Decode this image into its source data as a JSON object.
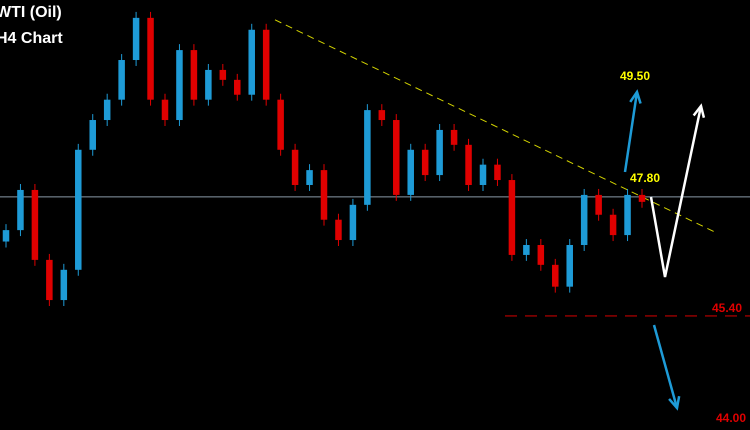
{
  "header": {
    "title_line1": "WTI (Oil)",
    "title_line2": "H4 Chart"
  },
  "chart_data": {
    "type": "candlestick",
    "ylim": [
      43.1,
      51.77
    ],
    "grid": false,
    "colors": {
      "up": "#1e9bd7",
      "down": "#e00000",
      "background": "#000000",
      "trendline": "#d4d400",
      "level_line": "#8a9aa8",
      "support": "#c00000",
      "arrow_blue": "#1e9bd7",
      "arrow_white": "#ffffff"
    },
    "candles": [
      [
        46.9,
        47.25,
        46.78,
        47.13
      ],
      [
        47.13,
        48.06,
        47.01,
        47.94
      ],
      [
        47.94,
        48.06,
        46.41,
        46.53
      ],
      [
        46.53,
        46.65,
        45.6,
        45.72
      ],
      [
        45.72,
        46.45,
        45.6,
        46.33
      ],
      [
        46.33,
        48.87,
        46.21,
        48.75
      ],
      [
        48.75,
        49.47,
        48.63,
        49.35
      ],
      [
        49.35,
        49.88,
        49.23,
        49.76
      ],
      [
        49.76,
        50.68,
        49.64,
        50.56
      ],
      [
        50.56,
        51.53,
        50.44,
        51.41
      ],
      [
        51.41,
        51.53,
        49.64,
        49.76
      ],
      [
        49.76,
        49.88,
        49.23,
        49.35
      ],
      [
        49.35,
        50.88,
        49.23,
        50.76
      ],
      [
        50.76,
        50.88,
        49.64,
        49.76
      ],
      [
        49.76,
        50.48,
        49.64,
        50.36
      ],
      [
        50.36,
        50.48,
        50.04,
        50.16
      ],
      [
        50.16,
        50.28,
        49.74,
        49.86
      ],
      [
        49.86,
        51.29,
        49.74,
        51.17
      ],
      [
        51.17,
        51.29,
        49.64,
        49.76
      ],
      [
        49.76,
        49.88,
        48.63,
        48.75
      ],
      [
        48.75,
        48.87,
        47.92,
        48.04
      ],
      [
        48.04,
        48.46,
        47.92,
        48.34
      ],
      [
        48.34,
        48.46,
        47.22,
        47.34
      ],
      [
        47.34,
        47.46,
        46.81,
        46.93
      ],
      [
        46.93,
        47.76,
        46.81,
        47.64
      ],
      [
        47.64,
        49.67,
        47.52,
        49.55
      ],
      [
        49.55,
        49.67,
        49.23,
        49.35
      ],
      [
        49.35,
        49.47,
        47.72,
        47.84
      ],
      [
        47.84,
        48.87,
        47.72,
        48.75
      ],
      [
        48.75,
        48.87,
        48.12,
        48.24
      ],
      [
        48.24,
        49.27,
        48.12,
        49.15
      ],
      [
        49.15,
        49.27,
        48.73,
        48.85
      ],
      [
        48.85,
        48.97,
        47.92,
        48.04
      ],
      [
        48.04,
        48.57,
        47.92,
        48.45
      ],
      [
        48.45,
        48.57,
        48.02,
        48.14
      ],
      [
        48.14,
        48.26,
        46.51,
        46.63
      ],
      [
        46.63,
        46.95,
        46.51,
        46.83
      ],
      [
        46.83,
        46.95,
        46.31,
        46.43
      ],
      [
        46.43,
        46.55,
        45.87,
        45.99
      ],
      [
        45.99,
        46.95,
        45.87,
        46.83
      ],
      [
        46.83,
        47.96,
        46.71,
        47.84
      ],
      [
        47.84,
        47.96,
        47.32,
        47.44
      ],
      [
        47.44,
        47.56,
        46.91,
        47.03
      ],
      [
        47.03,
        47.96,
        46.91,
        47.84
      ],
      [
        47.84,
        47.96,
        47.58,
        47.7
      ]
    ],
    "levels": [
      {
        "label": "49.50",
        "value": 49.5,
        "color": "#ffff00"
      },
      {
        "label": "47.80",
        "value": 47.8,
        "color": "#ffff00"
      },
      {
        "label": "45.40",
        "value": 45.4,
        "color": "#e00000"
      },
      {
        "label": "44.00",
        "value": 44.0,
        "color": "#e00000"
      }
    ],
    "trendline": {
      "from": 51.37,
      "to": 47.09
    }
  }
}
